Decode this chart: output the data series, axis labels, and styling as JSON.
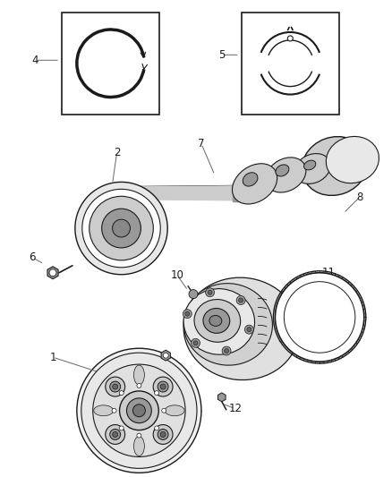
{
  "background_color": "#ffffff",
  "fig_width": 4.38,
  "fig_height": 5.33,
  "dpi": 100,
  "dark": "#1a1a1a",
  "gray": "#666666",
  "light_gray": "#cccccc",
  "mid_gray": "#999999"
}
